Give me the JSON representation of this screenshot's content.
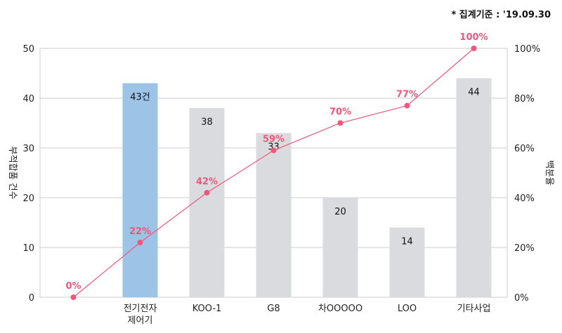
{
  "note": "* 집계기준 : '19.09.30",
  "chart_data": {
    "type": "bar",
    "categories": [
      "",
      "전기전자\n제어기",
      "KOO-1",
      "G8",
      "차OOOOO",
      "LOO",
      "기타사업"
    ],
    "series": [
      {
        "type": "bar",
        "values": [
          null,
          43,
          38,
          33,
          20,
          14,
          44
        ],
        "labels": [
          "",
          "43건",
          "38",
          "33",
          "20",
          "14",
          "44"
        ]
      },
      {
        "type": "line",
        "axis": "right",
        "values": [
          0,
          22,
          42,
          59,
          70,
          77,
          100
        ],
        "labels": [
          "0%",
          "22%",
          "42%",
          "59%",
          "70%",
          "77%",
          "100%"
        ]
      }
    ],
    "ylabel": "부적합품 건수",
    "ylabel_right": "백분율",
    "ylim": [
      0,
      50
    ],
    "yticks": [
      0,
      10,
      20,
      30,
      40,
      50
    ],
    "ylim_right": [
      0,
      100
    ],
    "yticks_right": [
      "0%",
      "20%",
      "40%",
      "60%",
      "80%",
      "100%"
    ],
    "grid": true,
    "colors": {
      "highlight_bar": "#9DC3E6",
      "bar": "#D9DBDE",
      "line": "#F0577A",
      "grid": "#CCCCCC"
    }
  }
}
